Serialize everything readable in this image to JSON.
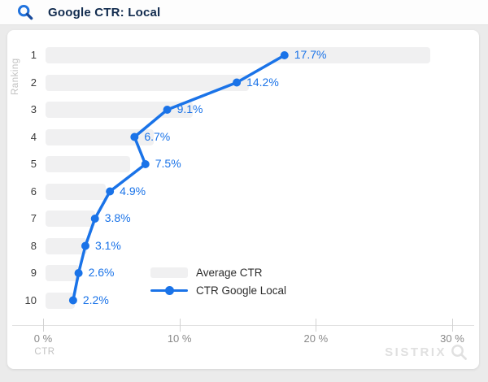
{
  "header": {
    "title": "Google CTR: Local",
    "icon": "magnifier-search-icon"
  },
  "accent_color": "#1a73e8",
  "chart_data": {
    "type": "bar",
    "title": "Google CTR: Local",
    "categories": [
      "1",
      "2",
      "3",
      "4",
      "5",
      "6",
      "7",
      "8",
      "9",
      "10"
    ],
    "series": [
      {
        "name": "Average CTR",
        "type": "bar",
        "color": "#f0f0f1",
        "values": [
          28.4,
          15.1,
          11.0,
          8.1,
          6.4,
          4.6,
          3.8,
          3.2,
          2.7,
          2.3
        ]
      },
      {
        "name": "CTR Google Local",
        "type": "line",
        "color": "#1a73e8",
        "values": [
          17.7,
          14.2,
          9.1,
          6.7,
          7.5,
          4.9,
          3.8,
          3.1,
          2.6,
          2.2
        ]
      }
    ],
    "data_labels": [
      "17.7%",
      "14.2%",
      "9.1%",
      "6.7%",
      "7.5%",
      "4.9%",
      "3.8%",
      "3.1%",
      "2.6%",
      "2.2%"
    ],
    "xlabel": "CTR",
    "ylabel": "Ranking",
    "x_ticks": [
      "0 %",
      "10 %",
      "20 %",
      "30 %"
    ],
    "x_tick_values": [
      0,
      10,
      20,
      30
    ],
    "xlim": [
      0,
      30
    ],
    "grid": false,
    "legend_position": "inside-bottom-left",
    "orientation": "horizontal"
  },
  "watermark": {
    "text": "SISTRIX",
    "icon": "magnifier"
  }
}
